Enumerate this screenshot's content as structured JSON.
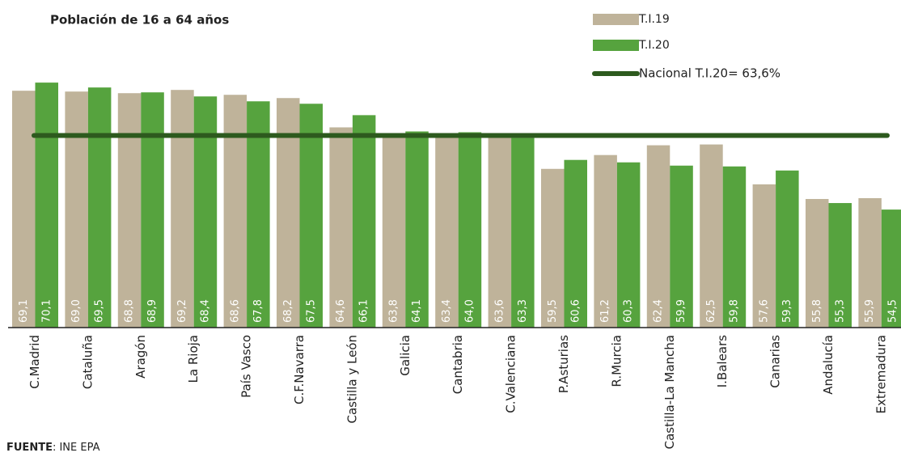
{
  "chart_data": {
    "type": "bar",
    "title": "Población de 16 a 64 años",
    "categories": [
      "C.Madrid",
      "Cataluña",
      "Aragón",
      "La Rioja",
      "País Vasco",
      "C.F.Navarra",
      "Castilla y León",
      "Galicia",
      "Cantabria",
      "C.Valenciana",
      "P.Asturias",
      "R.Murcia",
      "Castilla-La Mancha",
      "I.Balears",
      "Canarias",
      "Andalucía",
      "Extremadura"
    ],
    "series": [
      {
        "name": "T.I.19",
        "color": "#bfb39a",
        "values": [
          69.1,
          69.0,
          68.8,
          69.2,
          68.6,
          68.2,
          64.6,
          63.8,
          63.4,
          63.6,
          59.5,
          61.2,
          62.4,
          62.5,
          57.6,
          55.8,
          55.9
        ],
        "value_labels": [
          "69,1",
          "69,0",
          "68,8",
          "69,2",
          "68,6",
          "68,2",
          "64,6",
          "63,8",
          "63,4",
          "63,6",
          "59,5",
          "61,2",
          "62,4",
          "62,5",
          "57,6",
          "55,8",
          "55,9"
        ]
      },
      {
        "name": "T.I.20",
        "color": "#56a33e",
        "values": [
          70.1,
          69.5,
          68.9,
          68.4,
          67.8,
          67.5,
          66.1,
          64.1,
          64.0,
          63.3,
          60.6,
          60.3,
          59.9,
          59.8,
          59.3,
          55.3,
          54.5
        ],
        "value_labels": [
          "70,1",
          "69,5",
          "68,9",
          "68,4",
          "67,8",
          "67,5",
          "66,1",
          "64,1",
          "64,0",
          "63,3",
          "60,6",
          "60,3",
          "59,9",
          "59,8",
          "59,3",
          "55,3",
          "54,5"
        ]
      }
    ],
    "reference_line": {
      "value": 63.6,
      "label": "Nacional T.I.20= 63,6%",
      "color": "#2d5a1e"
    },
    "ylim": [
      40,
      72
    ],
    "source": {
      "label": "FUENTE",
      "text": ": INE EPA"
    }
  }
}
